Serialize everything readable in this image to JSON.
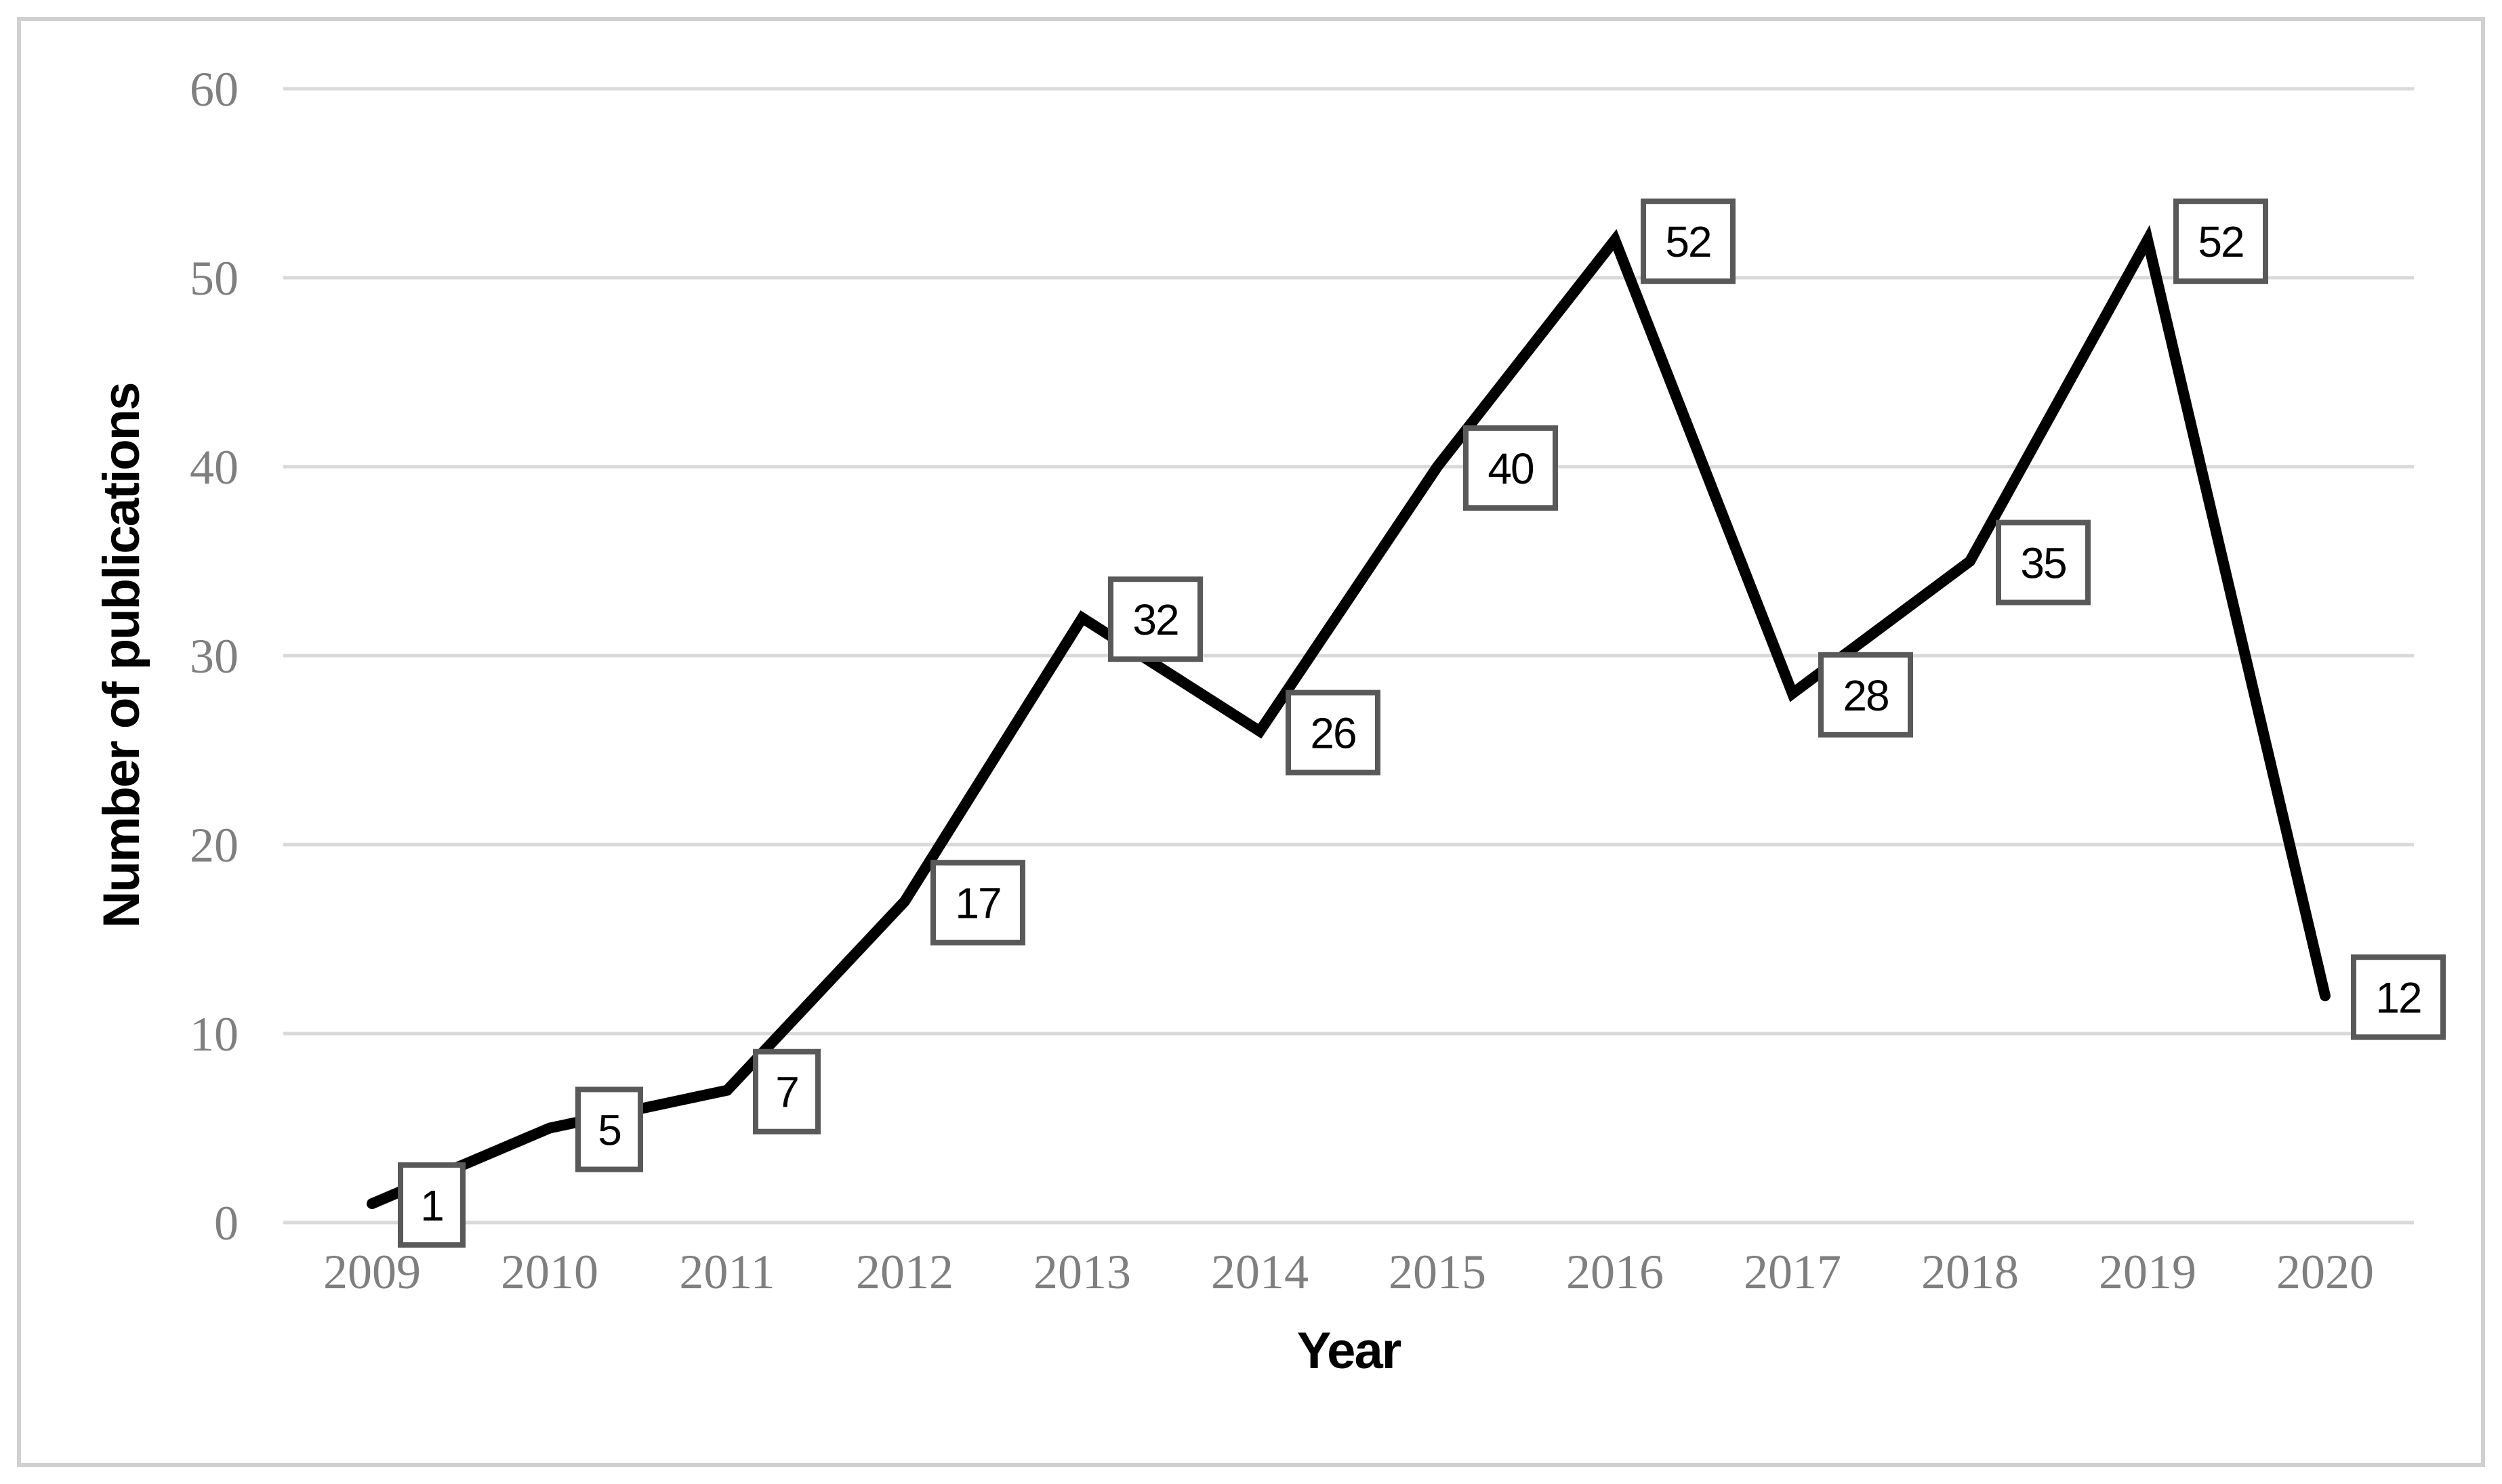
{
  "chart_data": {
    "type": "line",
    "title": "",
    "categories": [
      "2009",
      "2010",
      "2011",
      "2012",
      "2013",
      "2014",
      "2015",
      "2016",
      "2017",
      "2018",
      "2019",
      "2020"
    ],
    "values": [
      1,
      5,
      7,
      17,
      32,
      26,
      40,
      52,
      28,
      35,
      52,
      12
    ],
    "xlabel": "Year",
    "ylabel": "Number of publications",
    "ylim": [
      0,
      60
    ],
    "yticks": [
      0,
      10,
      20,
      30,
      40,
      50,
      60
    ],
    "grid": "horizontal-only",
    "legend_position": "none",
    "data_labels": "boxed value right of each point",
    "colors": {
      "line": "#000000",
      "gridline": "#d9d9d9",
      "tick_text": "#7f7f7f",
      "axis_title_text": "#000000",
      "data_label_text": "#000000",
      "data_label_box_border": "#595959",
      "data_label_box_fill": "#ffffff",
      "figure_border": "#d0d0d0",
      "background": "#ffffff"
    }
  }
}
